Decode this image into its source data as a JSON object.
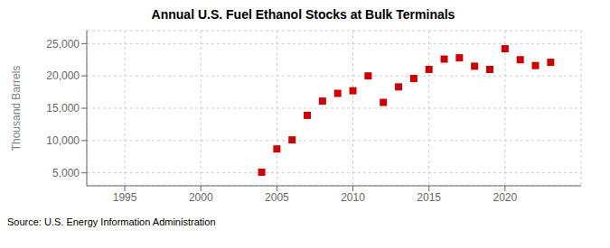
{
  "chart_data": {
    "type": "scatter",
    "title": "Annual U.S. Fuel Ethanol Stocks at Bulk Terminals",
    "y_label": "Thousand Barrels",
    "annotations": [
      "Source: U.S. Energy Information Administration"
    ],
    "x": [
      2004,
      2005,
      2006,
      2007,
      2008,
      2009,
      2010,
      2011,
      2012,
      2013,
      2014,
      2015,
      2016,
      2017,
      2018,
      2019,
      2020,
      2021,
      2022,
      2023
    ],
    "values": [
      5100,
      8700,
      10100,
      13900,
      16100,
      17300,
      17700,
      20000,
      15900,
      18300,
      19600,
      21000,
      22600,
      22800,
      21500,
      21000,
      24200,
      22500,
      21600,
      22100
    ],
    "color": "#cc0000",
    "marker": "square",
    "xlim": [
      1992.5,
      2025
    ],
    "xticks": [
      1995,
      2000,
      2005,
      2010,
      2015,
      2020
    ],
    "ylim": [
      3000,
      27000
    ],
    "yticks": [
      {
        "value": 5000,
        "label": "5,000"
      },
      {
        "value": 10000,
        "label": "10,000"
      },
      {
        "value": 15000,
        "label": "15,000"
      },
      {
        "value": 20000,
        "label": "20,000"
      },
      {
        "value": 25000,
        "label": "25,000"
      }
    ],
    "grid": true
  }
}
